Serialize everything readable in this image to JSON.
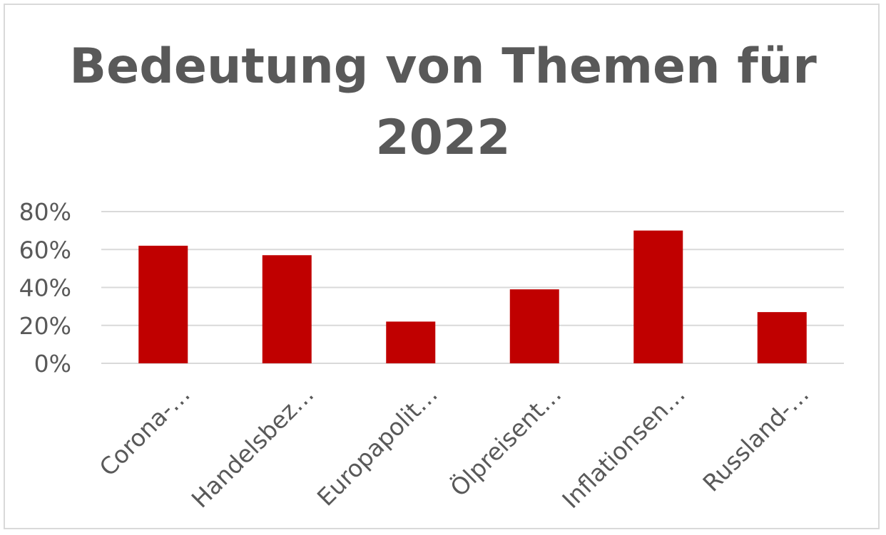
{
  "chart_data": {
    "type": "bar",
    "title_lines": [
      "Bedeutung von Themen für",
      "2022"
    ],
    "categories": [
      "Corona-…",
      "Handelsbez…",
      "Europapolit…",
      "Ölpreisent…",
      "Inflationsen…",
      "Russland-…"
    ],
    "values": [
      62,
      57,
      22,
      39,
      70,
      27
    ],
    "ylim": [
      0,
      80
    ],
    "yticks": [
      0,
      20,
      40,
      60,
      80
    ],
    "ytick_labels": [
      "0%",
      "20%",
      "40%",
      "60%",
      "80%"
    ],
    "grid": true,
    "legend": "none",
    "bar_color": "#c00000",
    "grid_color": "#d9d9d9",
    "text_color": "#595959"
  }
}
